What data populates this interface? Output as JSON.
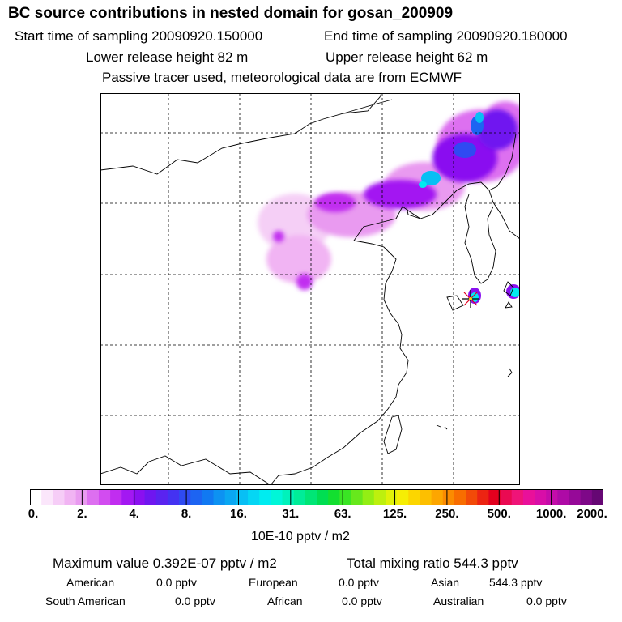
{
  "header": {
    "title": "BC  source contributions in nested domain for gosan_200909",
    "start_time": "Start time of sampling 20090920.150000",
    "end_time": "End time of sampling 20090920.180000",
    "lower_height": "Lower release height   82 m",
    "upper_height": "Upper release height   62 m",
    "tracer_note": "Passive tracer used, meteorological data are from ECMWF"
  },
  "colorbar": {
    "ticks": [
      "0.",
      "2.",
      "4.",
      "8.",
      "16.",
      "31.",
      "63.",
      "125.",
      "250.",
      "500.",
      "1000.",
      "2000."
    ],
    "colors": [
      "#ffffff",
      "#fbe6fb",
      "#f6cdf7",
      "#f1b4f3",
      "#e99af0",
      "#dd6ff0",
      "#d24cf0",
      "#c12df0",
      "#a318f2",
      "#8a10f0",
      "#6f16f0",
      "#5a23f0",
      "#4432f2",
      "#2f4af2",
      "#1d64f2",
      "#1179f2",
      "#0d92f2",
      "#0aa7f2",
      "#08bff4",
      "#05d6f4",
      "#00ecf0",
      "#00f6d8",
      "#00f2bb",
      "#00ec98",
      "#00e676",
      "#00de52",
      "#13df30",
      "#3ae524",
      "#67e81c",
      "#93ee14",
      "#bdf00e",
      "#e0f208",
      "#f6ee04",
      "#fcd600",
      "#fdbf00",
      "#fda600",
      "#fb8b00",
      "#f86d00",
      "#f24a08",
      "#ec2412",
      "#e3001e",
      "#ea0a52",
      "#ef1478",
      "#e9109a",
      "#d80ea8",
      "#c40caa",
      "#ae0aa6",
      "#960998",
      "#7e0888",
      "#660774"
    ],
    "unit": "10E-10 pptv / m2"
  },
  "map": {
    "receptor": "gosan",
    "plume_peak_color": "#00ecf0"
  },
  "stats": {
    "max_value": "Maximum value  0.392E-07 pptv / m2",
    "total_mixing": "Total mixing ratio      544.3 pptv",
    "american": "American",
    "american_val": "0.0 pptv",
    "european": "European",
    "european_val": "0.0 pptv",
    "asian": "Asian",
    "asian_val": "544.3 pptv",
    "south_american": "South American",
    "south_american_val": "0.0 pptv",
    "african": "African",
    "african_val": "0.0 pptv",
    "australian": "Australian",
    "australian_val": "0.0 pptv"
  }
}
